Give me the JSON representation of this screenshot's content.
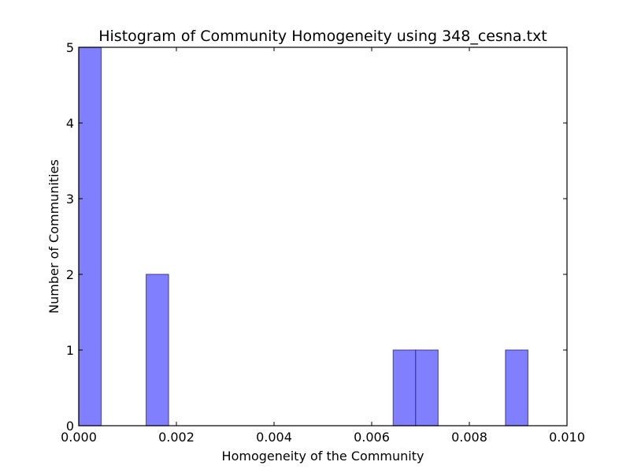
{
  "chart_data": {
    "type": "bar",
    "title": "Histogram of Community Homogeneity using 348_cesna.txt",
    "xlabel": "Homogeneity of the Community",
    "ylabel": "Number of Communities",
    "xlim": [
      0.0,
      0.01
    ],
    "ylim": [
      0,
      5
    ],
    "xticks": [
      "0.000",
      "0.002",
      "0.004",
      "0.006",
      "0.008",
      "0.010"
    ],
    "yticks": [
      "0",
      "1",
      "2",
      "3",
      "4",
      "5"
    ],
    "bar_color": "#8080ff",
    "bar_edge_color": "#2a2a80",
    "grid": false,
    "legend": "none",
    "bins": [
      {
        "x0": 0.0,
        "x1": 0.00046,
        "count": 5
      },
      {
        "x0": 0.00138,
        "x1": 0.00184,
        "count": 2
      },
      {
        "x0": 0.00644,
        "x1": 0.0069,
        "count": 1
      },
      {
        "x0": 0.0069,
        "x1": 0.00736,
        "count": 1
      },
      {
        "x0": 0.00874,
        "x1": 0.0092,
        "count": 1
      }
    ]
  }
}
